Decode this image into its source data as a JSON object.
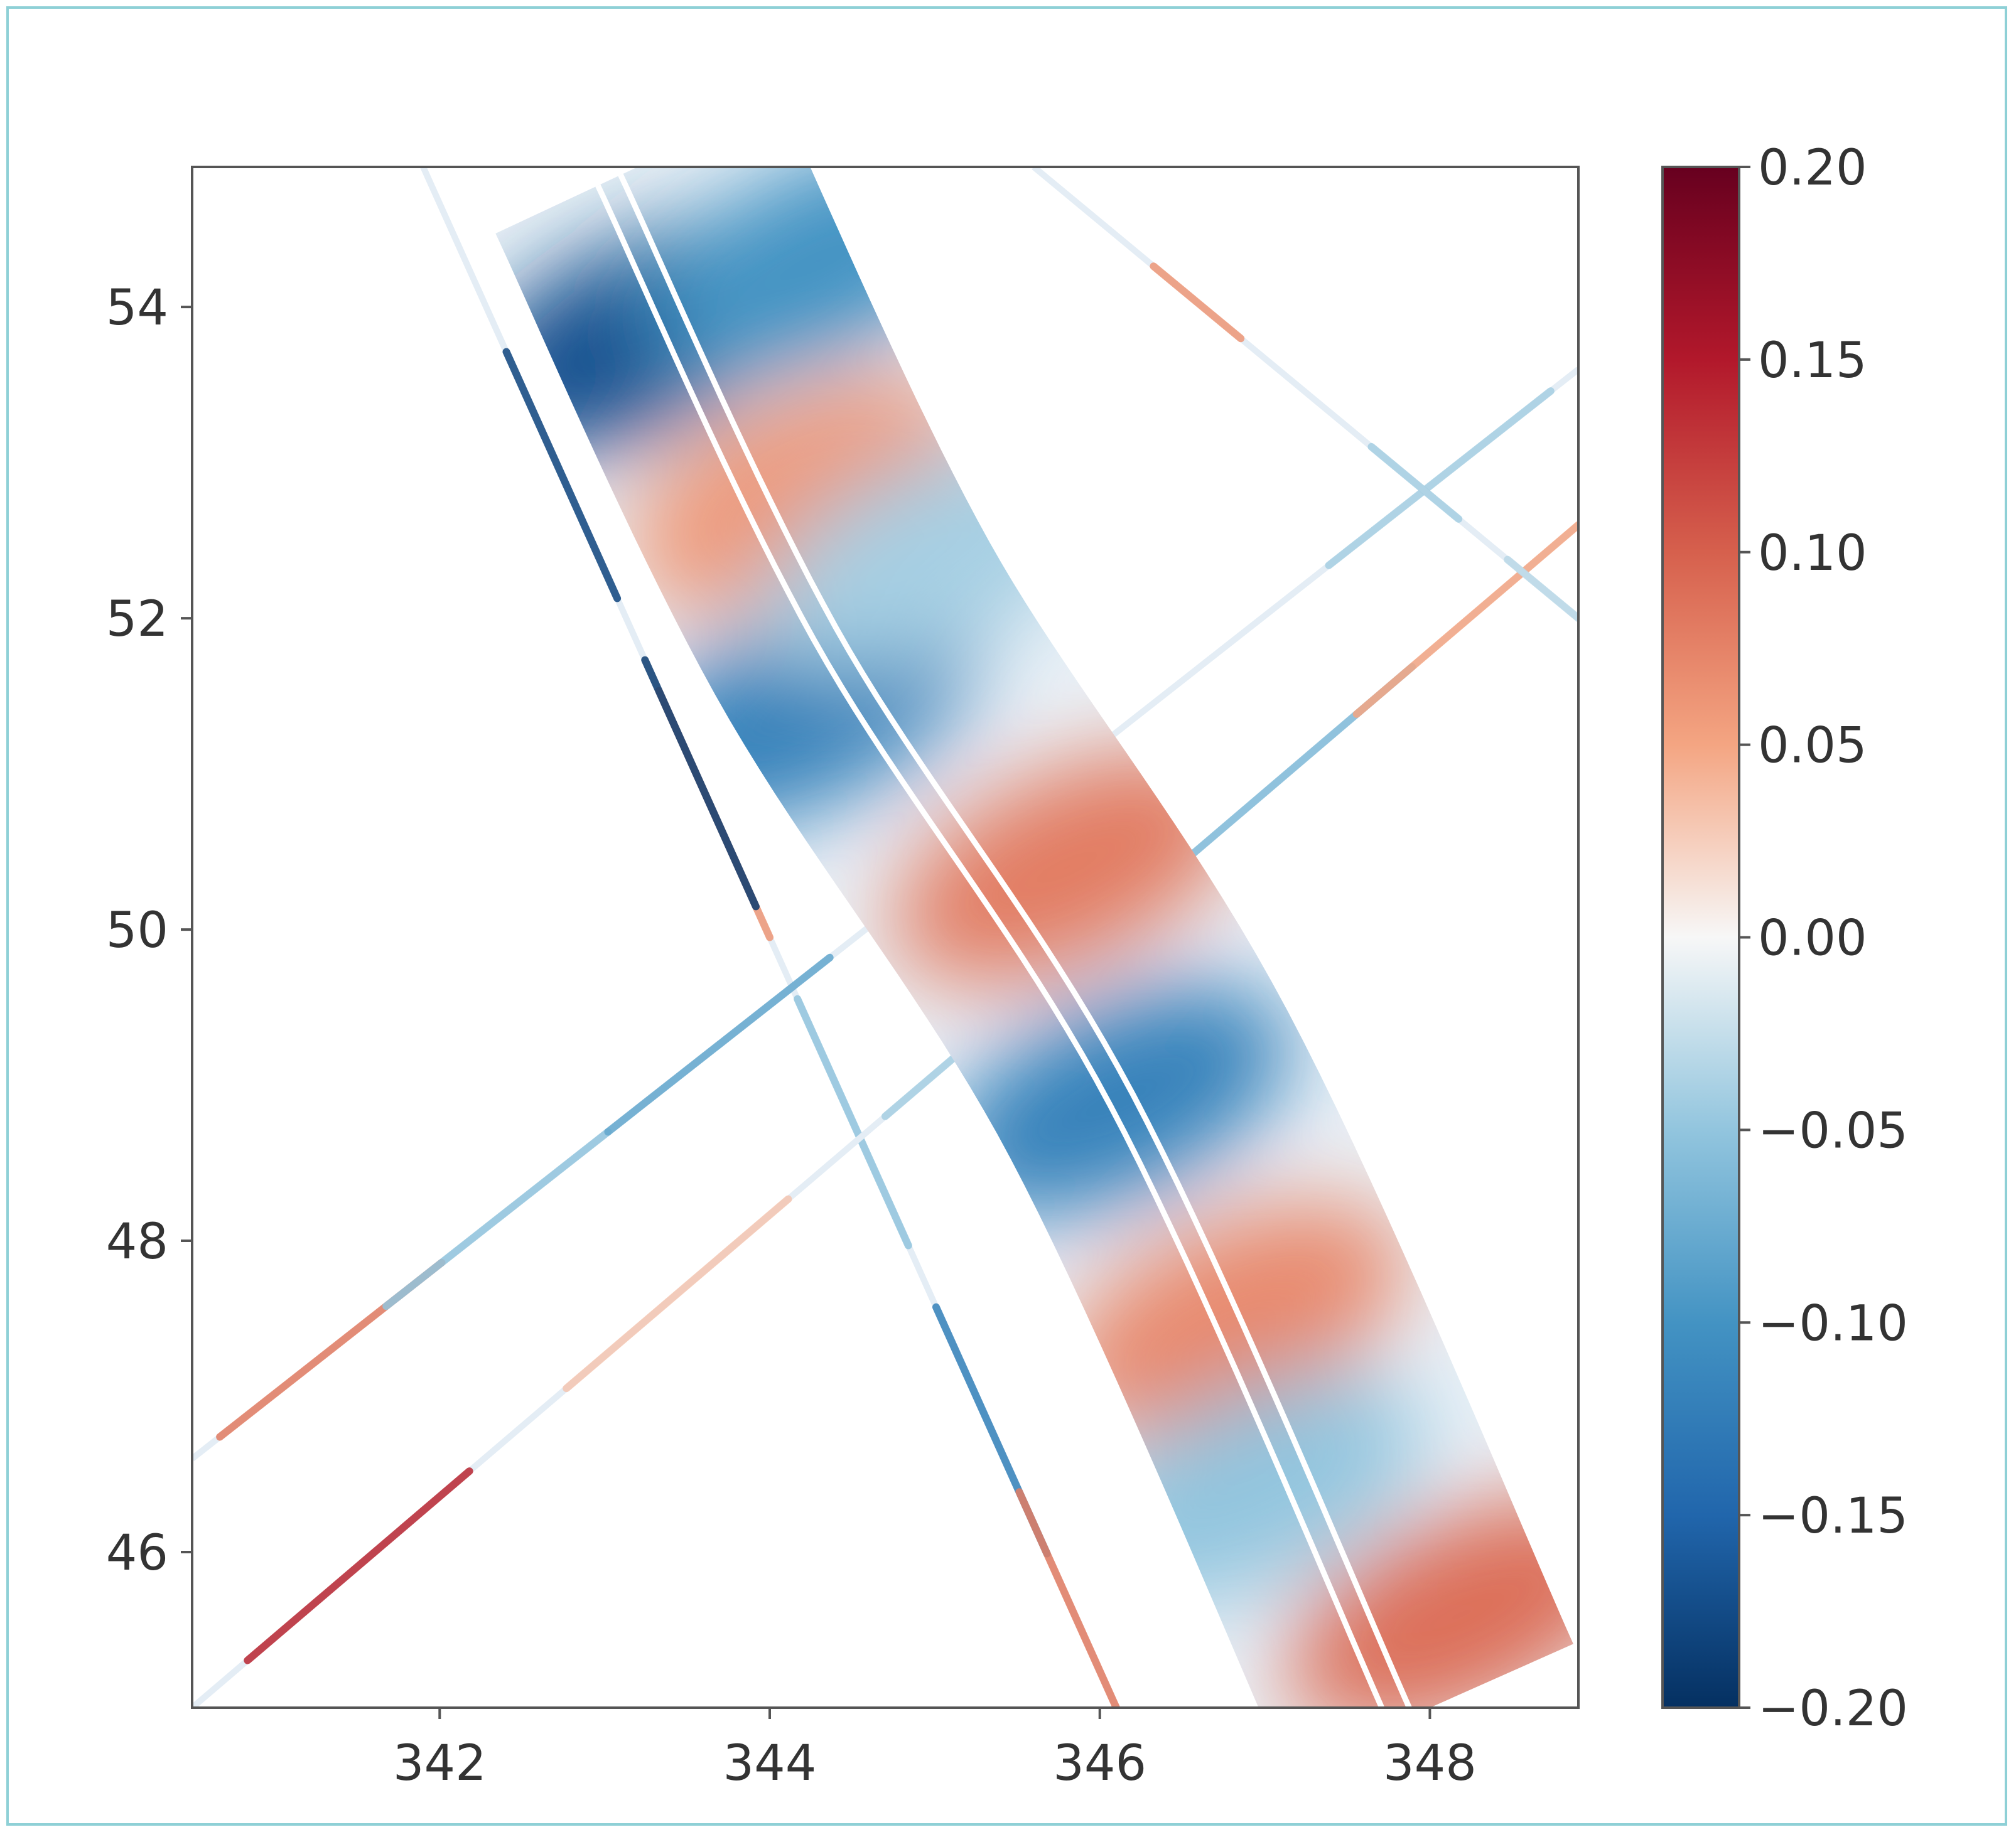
{
  "chart_data": {
    "type": "heatmap",
    "title": "",
    "xlabel": "",
    "ylabel": "",
    "xlim": [
      340.5,
      348.9
    ],
    "ylim": [
      45.0,
      54.9
    ],
    "x_ticks": [
      "342",
      "344",
      "346",
      "348"
    ],
    "y_ticks": [
      "46",
      "48",
      "50",
      "52",
      "54"
    ],
    "colorbar": {
      "colormap": "RdBu_r",
      "range": [
        -0.2,
        0.2
      ],
      "ticks": [
        "−0.20",
        "−0.15",
        "−0.10",
        "−0.05",
        "0.00",
        "0.05",
        "0.10",
        "0.15",
        "0.20"
      ],
      "colors": [
        "#053061",
        "#2166ac",
        "#4393c3",
        "#92c5de",
        "#f7f7f7",
        "#f4a582",
        "#d6604d",
        "#b2182b",
        "#67001f"
      ]
    },
    "swath": {
      "description_points": [
        {
          "lon": 343.2,
          "lat": 54.9
        },
        {
          "lon": 344.5,
          "lat": 52.0
        },
        {
          "lon": 346.3,
          "lat": 49.0
        },
        {
          "lon": 348.0,
          "lat": 45.0
        }
      ],
      "anomalies": [
        {
          "lon": 343.2,
          "lat": 53.8,
          "value": -0.17
        },
        {
          "lon": 344.3,
          "lat": 54.3,
          "value": -0.1
        },
        {
          "lon": 344.2,
          "lat": 52.8,
          "value": 0.06
        },
        {
          "lon": 344.2,
          "lat": 51.4,
          "value": -0.12
        },
        {
          "lon": 345.8,
          "lat": 50.4,
          "value": 0.08
        },
        {
          "lon": 345.0,
          "lat": 52.4,
          "value": -0.04
        },
        {
          "lon": 346.1,
          "lat": 48.9,
          "value": -0.12
        },
        {
          "lon": 346.8,
          "lat": 47.5,
          "value": 0.07
        },
        {
          "lon": 346.9,
          "lat": 46.4,
          "value": -0.05
        },
        {
          "lon": 348.2,
          "lat": 45.6,
          "value": 0.09
        }
      ]
    },
    "tracks": [
      {
        "from": [
          341.9,
          54.9
        ],
        "to": [
          346.1,
          45.0
        ],
        "segments": [
          {
            "t": 0.2,
            "value": -0.18
          },
          {
            "t": 0.42,
            "value": 0.06
          },
          {
            "t": 0.4,
            "value": -0.19
          },
          {
            "t": 0.62,
            "value": -0.05
          },
          {
            "t": 0.82,
            "value": -0.12
          },
          {
            "t": 0.94,
            "value": 0.08
          }
        ]
      },
      {
        "from": [
          340.5,
          45.0
        ],
        "to": [
          348.9,
          52.6
        ],
        "segments": [
          {
            "t": 0.12,
            "value": 0.14
          },
          {
            "t": 0.35,
            "value": 0.03
          },
          {
            "t": 0.58,
            "value": -0.04
          },
          {
            "t": 0.8,
            "value": -0.06
          },
          {
            "t": 0.92,
            "value": 0.05
          }
        ]
      },
      {
        "from": [
          340.5,
          46.6
        ],
        "to": [
          348.9,
          53.6
        ],
        "segments": [
          {
            "t": 0.1,
            "value": 0.08
          },
          {
            "t": 0.22,
            "value": -0.05
          },
          {
            "t": 0.38,
            "value": -0.08
          },
          {
            "t": 0.58,
            "value": -0.05
          },
          {
            "t": 0.9,
            "value": -0.04
          }
        ]
      },
      {
        "from": [
          345.6,
          54.9
        ],
        "to": [
          348.9,
          52.0
        ],
        "segments": [
          {
            "t": 0.3,
            "value": 0.06
          },
          {
            "t": 0.7,
            "value": -0.04
          },
          {
            "t": 0.95,
            "value": -0.03
          }
        ]
      }
    ]
  }
}
